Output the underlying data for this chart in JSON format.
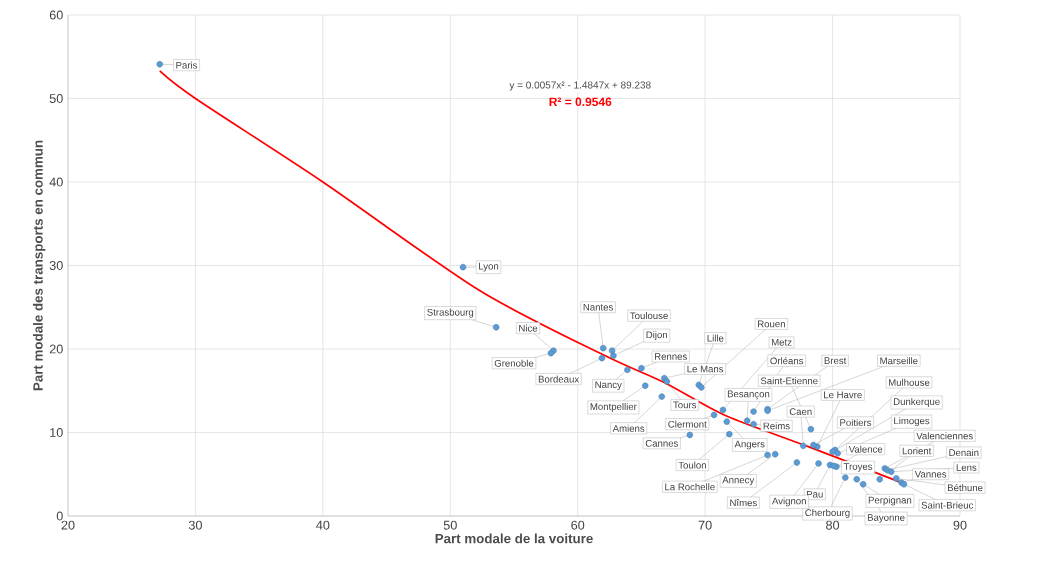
{
  "chart_data": {
    "type": "scatter",
    "xlabel": "Part modale de la voiture",
    "ylabel": "Part modale des transports en commun",
    "xlim": [
      20,
      90
    ],
    "ylim": [
      0,
      60
    ],
    "xticks": [
      20,
      30,
      40,
      50,
      60,
      70,
      80,
      90
    ],
    "yticks": [
      0,
      10,
      20,
      30,
      40,
      50,
      60
    ],
    "grid": true,
    "series": [
      {
        "type": "scatter",
        "color": "#5b9bd5",
        "marker": "circle",
        "x": [
          27.2,
          51.0,
          53.6,
          58.1,
          57.9,
          62.0,
          62.7,
          62.8,
          61.9,
          63.9,
          65.0,
          66.8,
          65.3,
          66.6,
          67.0,
          70.7,
          68.8,
          69.5,
          69.7,
          71.4,
          73.8,
          74.9,
          74.9,
          78.3,
          73.3,
          73.8,
          77.7,
          78.8,
          78.5,
          80.2,
          80.0,
          80.4,
          84.1,
          80.3,
          83.7,
          84.3,
          84.6,
          85.4,
          85.0,
          85.6,
          82.4,
          81.9,
          81.0,
          79.8,
          80.1,
          78.9,
          77.2,
          75.5,
          71.7,
          71.9,
          74.9
        ],
        "values": [
          54.1,
          29.8,
          22.6,
          19.8,
          19.5,
          20.1,
          19.8,
          19.2,
          18.9,
          17.5,
          17.7,
          16.5,
          15.6,
          14.3,
          16.1,
          12.1,
          9.7,
          15.7,
          15.4,
          12.7,
          12.5,
          12.8,
          12.6,
          10.4,
          11.4,
          11.0,
          8.4,
          8.3,
          8.5,
          7.9,
          7.7,
          7.5,
          5.7,
          5.9,
          4.4,
          5.5,
          5.3,
          4.0,
          4.5,
          3.8,
          3.8,
          4.4,
          4.6,
          6.1,
          6.0,
          6.3,
          6.4,
          7.4,
          11.3,
          9.8,
          7.3
        ]
      },
      {
        "type": "line",
        "color": "#ff0000",
        "marker": "none",
        "line_style": "solid",
        "x": [
          27.2,
          30,
          40,
          52.2,
          62,
          66.9,
          71.5,
          78.1,
          85.4
        ],
        "values": [
          53.3,
          50.0,
          40.0,
          27.1,
          19.3,
          15.9,
          12.1,
          8.3,
          4.0
        ]
      }
    ],
    "annotations": [
      {
        "text": "Paris",
        "x": 27.2,
        "y": 54.1
      },
      {
        "text": "Lyon",
        "x": 51.0,
        "y": 29.8
      },
      {
        "text": "Strasbourg",
        "x": 53.6,
        "y": 22.6
      },
      {
        "text": "Nice",
        "x": 58.1,
        "y": 19.8
      },
      {
        "text": "Grenoble",
        "x": 57.9,
        "y": 19.5
      },
      {
        "text": "Nantes",
        "x": 62.0,
        "y": 20.1
      },
      {
        "text": "Toulouse",
        "x": 62.7,
        "y": 19.8
      },
      {
        "text": "Dijon",
        "x": 62.8,
        "y": 19.2
      },
      {
        "text": "Bordeaux",
        "x": 61.9,
        "y": 18.9
      },
      {
        "text": "Nancy",
        "x": 63.9,
        "y": 17.5
      },
      {
        "text": "Rennes",
        "x": 65.0,
        "y": 17.7
      },
      {
        "text": "Le Mans",
        "x": 66.8,
        "y": 16.5
      },
      {
        "text": "Montpellier",
        "x": 65.3,
        "y": 15.6
      },
      {
        "text": "Amiens",
        "x": 66.6,
        "y": 14.3
      },
      {
        "text": "Tours",
        "x": 67.0,
        "y": 16.1
      },
      {
        "text": "Clermont",
        "x": 70.7,
        "y": 12.1
      },
      {
        "text": "Cannes",
        "x": 68.8,
        "y": 9.7
      },
      {
        "text": "Lille",
        "x": 69.5,
        "y": 15.7
      },
      {
        "text": "Rouen",
        "x": 69.7,
        "y": 15.4
      },
      {
        "text": "Metz",
        "x": 71.4,
        "y": 12.7
      },
      {
        "text": "Orléans",
        "x": 73.8,
        "y": 12.5
      },
      {
        "text": "Brest",
        "x": 74.9,
        "y": 12.8
      },
      {
        "text": "Marseille",
        "x": 74.9,
        "y": 12.6
      },
      {
        "text": "Saint-Etienne",
        "x": 78.3,
        "y": 10.4
      },
      {
        "text": "Besançon",
        "x": 73.3,
        "y": 11.4
      },
      {
        "text": "Reims",
        "x": 73.8,
        "y": 11.0
      },
      {
        "text": "Caen",
        "x": 77.7,
        "y": 8.4
      },
      {
        "text": "Le Havre",
        "x": 78.8,
        "y": 8.3
      },
      {
        "text": "Poitiers",
        "x": 78.5,
        "y": 8.5
      },
      {
        "text": "Mulhouse",
        "x": 80.2,
        "y": 7.9
      },
      {
        "text": "Dunkerque",
        "x": 80.0,
        "y": 7.7
      },
      {
        "text": "Limoges",
        "x": 80.4,
        "y": 7.5
      },
      {
        "text": "Valenciennes",
        "x": 84.1,
        "y": 5.7
      },
      {
        "text": "Valence",
        "x": 80.3,
        "y": 5.9
      },
      {
        "text": "Lorient",
        "x": 83.7,
        "y": 4.4
      },
      {
        "text": "Denain",
        "x": 84.3,
        "y": 5.5
      },
      {
        "text": "Lens",
        "x": 84.6,
        "y": 5.3
      },
      {
        "text": "Vannes",
        "x": 85.4,
        "y": 4.0
      },
      {
        "text": "Béthune",
        "x": 85.0,
        "y": 4.5
      },
      {
        "text": "Saint-Brieuc",
        "x": 85.6,
        "y": 3.8
      },
      {
        "text": "Perpignan",
        "x": 82.4,
        "y": 3.8
      },
      {
        "text": "Bayonne",
        "x": 81.9,
        "y": 4.4
      },
      {
        "text": "Cherbourg",
        "x": 81.0,
        "y": 4.6
      },
      {
        "text": "Pau",
        "x": 79.8,
        "y": 6.1
      },
      {
        "text": "Troyes",
        "x": 80.1,
        "y": 6.0
      },
      {
        "text": "Avignon",
        "x": 78.9,
        "y": 6.3
      },
      {
        "text": "Nîmes",
        "x": 77.2,
        "y": 6.4
      },
      {
        "text": "Annecy",
        "x": 75.5,
        "y": 7.4
      },
      {
        "text": "Angers",
        "x": 71.7,
        "y": 11.3
      },
      {
        "text": "Toulon",
        "x": 71.9,
        "y": 9.8
      },
      {
        "text": "La Rochelle",
        "x": 74.9,
        "y": 7.3
      },
      "y = 0.0057x² - 1.4847x + 89.238",
      "R² = 0.9546"
    ]
  }
}
